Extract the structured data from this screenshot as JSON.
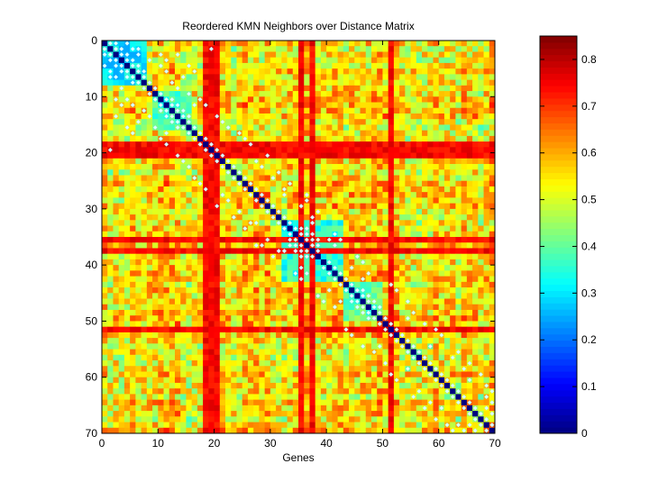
{
  "chart_data": {
    "type": "heatmap",
    "title": "Reordered KMN Neighbors over Distance Matrix",
    "xlabel": "Genes",
    "ylabel": "",
    "matrix_size": 70,
    "xlim": [
      0,
      70
    ],
    "ylim": [
      0,
      70
    ],
    "y_axis_direction": "top-to-bottom",
    "xticks": [
      0,
      10,
      20,
      30,
      40,
      50,
      60,
      70
    ],
    "yticks": [
      0,
      10,
      20,
      30,
      40,
      50,
      60,
      70
    ],
    "colormap": "jet",
    "color_range": [
      0,
      0.85
    ],
    "colorbar": {
      "placement": "right",
      "ticks": [
        0,
        0.1,
        0.2,
        0.3,
        0.4,
        0.5,
        0.6,
        0.7,
        0.8
      ],
      "tick_labels": [
        "0",
        "0.1",
        "0.2",
        "0.3",
        "0.4",
        "0.5",
        "0.6",
        "0.7",
        "0.8"
      ]
    },
    "diagonal_value": 0,
    "typical_off_diagonal_value": 0.55,
    "high_distance_genes": [
      19,
      20,
      21,
      36,
      38,
      52
    ],
    "high_distance_value": 0.78,
    "low_distance_blocks": [
      {
        "genes_from": 1,
        "genes_to": 8,
        "value": 0.3
      },
      {
        "genes_from": 10,
        "genes_to": 16,
        "value": 0.38
      },
      {
        "genes_from": 33,
        "genes_to": 43,
        "value": 0.35
      },
      {
        "genes_from": 44,
        "genes_to": 50,
        "value": 0.4
      }
    ],
    "marker_color": "#e0ffff",
    "marker_description": "KMN neighbor pairs",
    "neighbor_pairs": [
      [
        1,
        2
      ],
      [
        1,
        3
      ],
      [
        2,
        3
      ],
      [
        2,
        4
      ],
      [
        3,
        4
      ],
      [
        3,
        5
      ],
      [
        4,
        5
      ],
      [
        4,
        6
      ],
      [
        5,
        6
      ],
      [
        5,
        7
      ],
      [
        2,
        6
      ],
      [
        3,
        7
      ],
      [
        1,
        5
      ],
      [
        6,
        7
      ],
      [
        6,
        8
      ],
      [
        7,
        8
      ],
      [
        2,
        7
      ],
      [
        8,
        9
      ],
      [
        9,
        10
      ],
      [
        10,
        11
      ],
      [
        11,
        12
      ],
      [
        11,
        13
      ],
      [
        12,
        13
      ],
      [
        12,
        14
      ],
      [
        13,
        14
      ],
      [
        13,
        15
      ],
      [
        14,
        15
      ],
      [
        14,
        16
      ],
      [
        15,
        16
      ],
      [
        16,
        17
      ],
      [
        17,
        18
      ],
      [
        18,
        19
      ],
      [
        19,
        20
      ],
      [
        20,
        21
      ],
      [
        21,
        22
      ],
      [
        22,
        23
      ],
      [
        23,
        24
      ],
      [
        24,
        25
      ],
      [
        25,
        26
      ],
      [
        26,
        27
      ],
      [
        27,
        28
      ],
      [
        28,
        29
      ],
      [
        29,
        30
      ],
      [
        30,
        31
      ],
      [
        31,
        32
      ],
      [
        32,
        33
      ],
      [
        33,
        34
      ],
      [
        34,
        35
      ],
      [
        34,
        36
      ],
      [
        35,
        36
      ],
      [
        35,
        37
      ],
      [
        36,
        37
      ],
      [
        36,
        38
      ],
      [
        37,
        38
      ],
      [
        35,
        38
      ],
      [
        36,
        39
      ],
      [
        37,
        39
      ],
      [
        38,
        39
      ],
      [
        34,
        37
      ],
      [
        36,
        41
      ],
      [
        37,
        42
      ],
      [
        35,
        42
      ],
      [
        36,
        43
      ],
      [
        40,
        41
      ],
      [
        41,
        42
      ],
      [
        42,
        43
      ],
      [
        43,
        44
      ],
      [
        44,
        45
      ],
      [
        45,
        46
      ],
      [
        45,
        47
      ],
      [
        46,
        47
      ],
      [
        46,
        48
      ],
      [
        47,
        48
      ],
      [
        47,
        49
      ],
      [
        48,
        49
      ],
      [
        48,
        50
      ],
      [
        49,
        50
      ],
      [
        50,
        51
      ],
      [
        51,
        52
      ],
      [
        52,
        53
      ],
      [
        53,
        54
      ],
      [
        54,
        55
      ],
      [
        55,
        56
      ],
      [
        56,
        57
      ],
      [
        57,
        58
      ],
      [
        58,
        59
      ],
      [
        59,
        60
      ],
      [
        60,
        61
      ],
      [
        61,
        62
      ],
      [
        62,
        63
      ],
      [
        63,
        64
      ],
      [
        64,
        65
      ],
      [
        65,
        66
      ],
      [
        66,
        67
      ],
      [
        67,
        68
      ],
      [
        68,
        69
      ],
      [
        69,
        70
      ],
      [
        66,
        69
      ],
      [
        67,
        70
      ],
      [
        3,
        11
      ],
      [
        4,
        12
      ],
      [
        5,
        11
      ],
      [
        7,
        15
      ],
      [
        11,
        18
      ],
      [
        12,
        17
      ],
      [
        14,
        21
      ],
      [
        25,
        31
      ],
      [
        28,
        33
      ],
      [
        30,
        36
      ],
      [
        26,
        34
      ],
      [
        40,
        47
      ],
      [
        44,
        52
      ],
      [
        47,
        55
      ],
      [
        52,
        60
      ],
      [
        57,
        63
      ],
      [
        58,
        66
      ],
      [
        55,
        59
      ],
      [
        2,
        20
      ],
      [
        6,
        17
      ],
      [
        9,
        14
      ],
      [
        10,
        16
      ],
      [
        28,
        37
      ],
      [
        22,
        28
      ],
      [
        39,
        46
      ],
      [
        42,
        48
      ],
      [
        53,
        61
      ],
      [
        60,
        68
      ],
      [
        62,
        69
      ],
      [
        63,
        70
      ],
      [
        33,
        38
      ],
      [
        16,
        23
      ],
      [
        5,
        16
      ],
      [
        3,
        14
      ],
      [
        8,
        13
      ],
      [
        17,
        25
      ],
      [
        19,
        27
      ],
      [
        24,
        32
      ],
      [
        45,
        53
      ],
      [
        49,
        56
      ],
      [
        61,
        66
      ],
      [
        56,
        64
      ],
      [
        64,
        69
      ],
      [
        23,
        29
      ],
      [
        27,
        33
      ],
      [
        29,
        37
      ],
      [
        31,
        39
      ],
      [
        32,
        38
      ],
      [
        41,
        45
      ],
      [
        43,
        47
      ],
      [
        50,
        55
      ],
      [
        51,
        58
      ],
      [
        59,
        65
      ],
      [
        65,
        70
      ],
      [
        12,
        19
      ],
      [
        15,
        22
      ],
      [
        18,
        26
      ],
      [
        21,
        30
      ],
      [
        6,
        12
      ],
      [
        4,
        9
      ]
    ]
  }
}
